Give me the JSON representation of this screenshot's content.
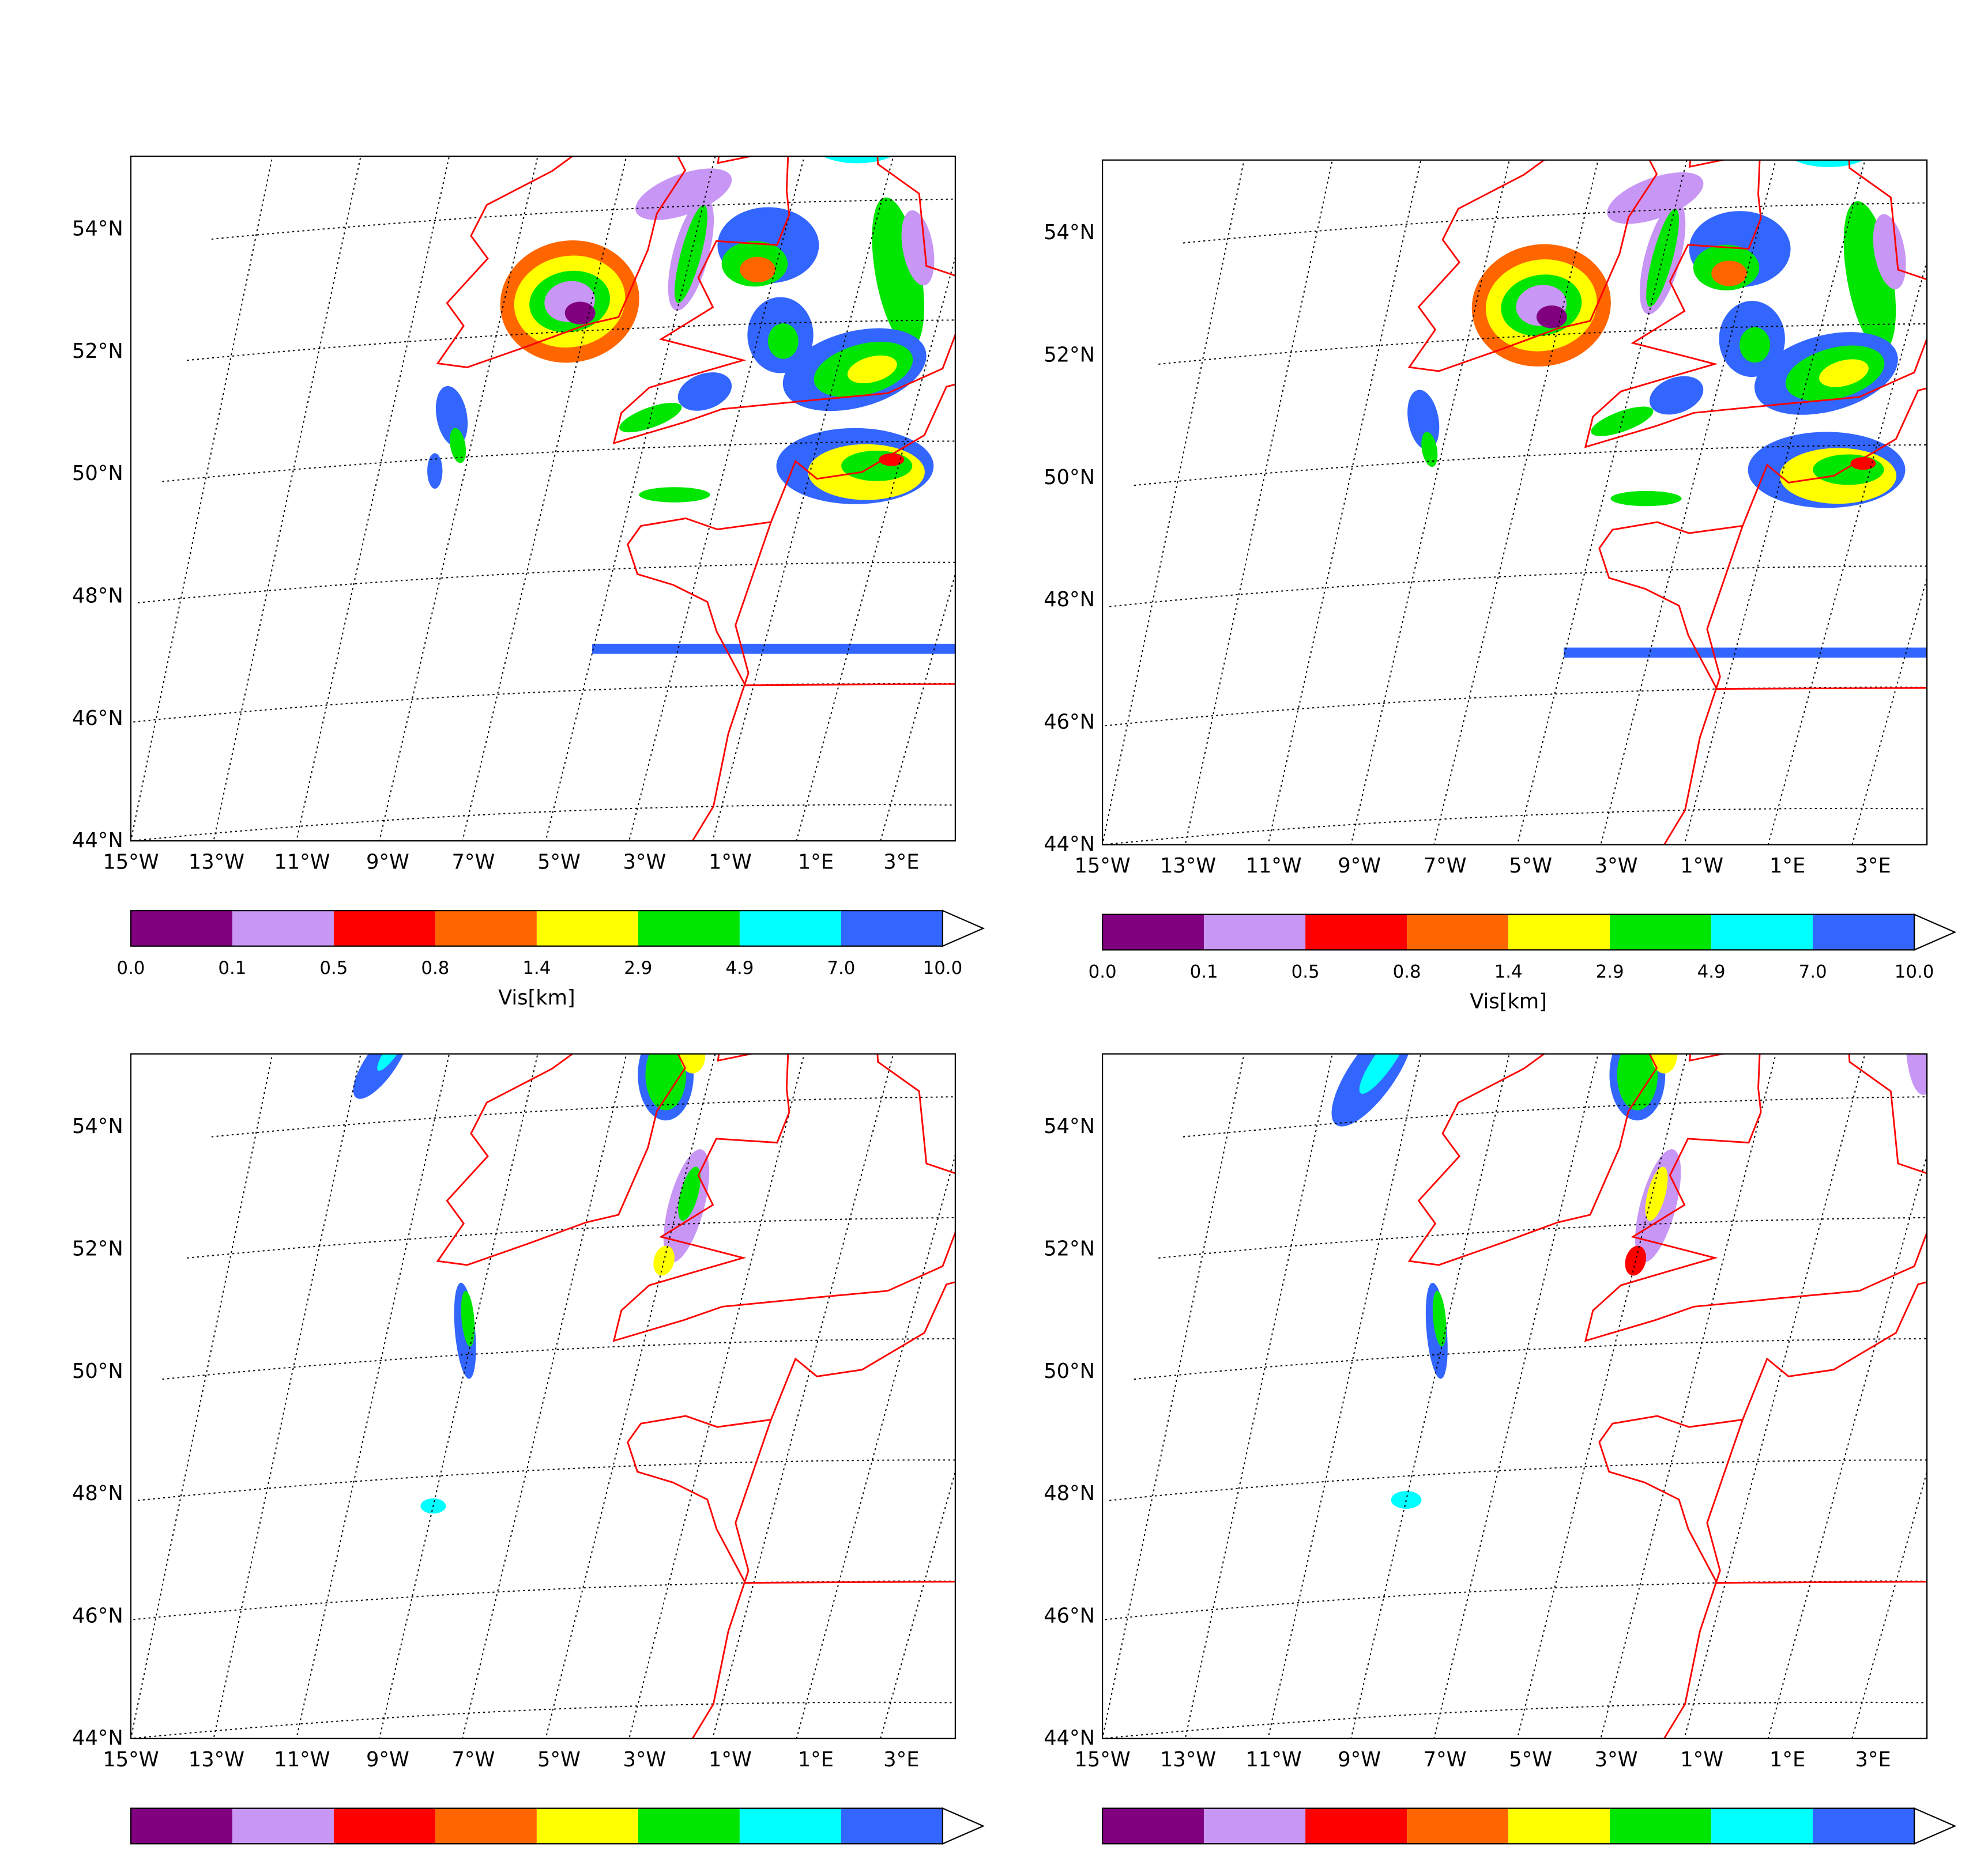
{
  "figure": {
    "panels": [
      {
        "id": "top-left"
      },
      {
        "id": "top-right"
      },
      {
        "id": "bottom-left"
      },
      {
        "id": "bottom-right"
      }
    ],
    "longitude_labels": [
      "15°W",
      "13°W",
      "11°W",
      "9°W",
      "7°W",
      "5°W",
      "3°W",
      "1°W",
      "1°E",
      "3°E"
    ],
    "latitude_labels": [
      "44°N",
      "46°N",
      "48°N",
      "50°N",
      "52°N",
      "54°N"
    ],
    "colorbar": {
      "label": "Vis[km]",
      "ticks": [
        "0.0",
        "0.1",
        "0.5",
        "0.8",
        "1.4",
        "2.9",
        "4.9",
        "7.0",
        "10.0"
      ],
      "colors": [
        "#800080",
        "#c896f5",
        "#ff0000",
        "#ff6600",
        "#ffff00",
        "#00e600",
        "#00ffff",
        "#3366ff"
      ],
      "extend": "max"
    },
    "coastline_color": "#ff0000",
    "gridline_style": "dotted black"
  }
}
